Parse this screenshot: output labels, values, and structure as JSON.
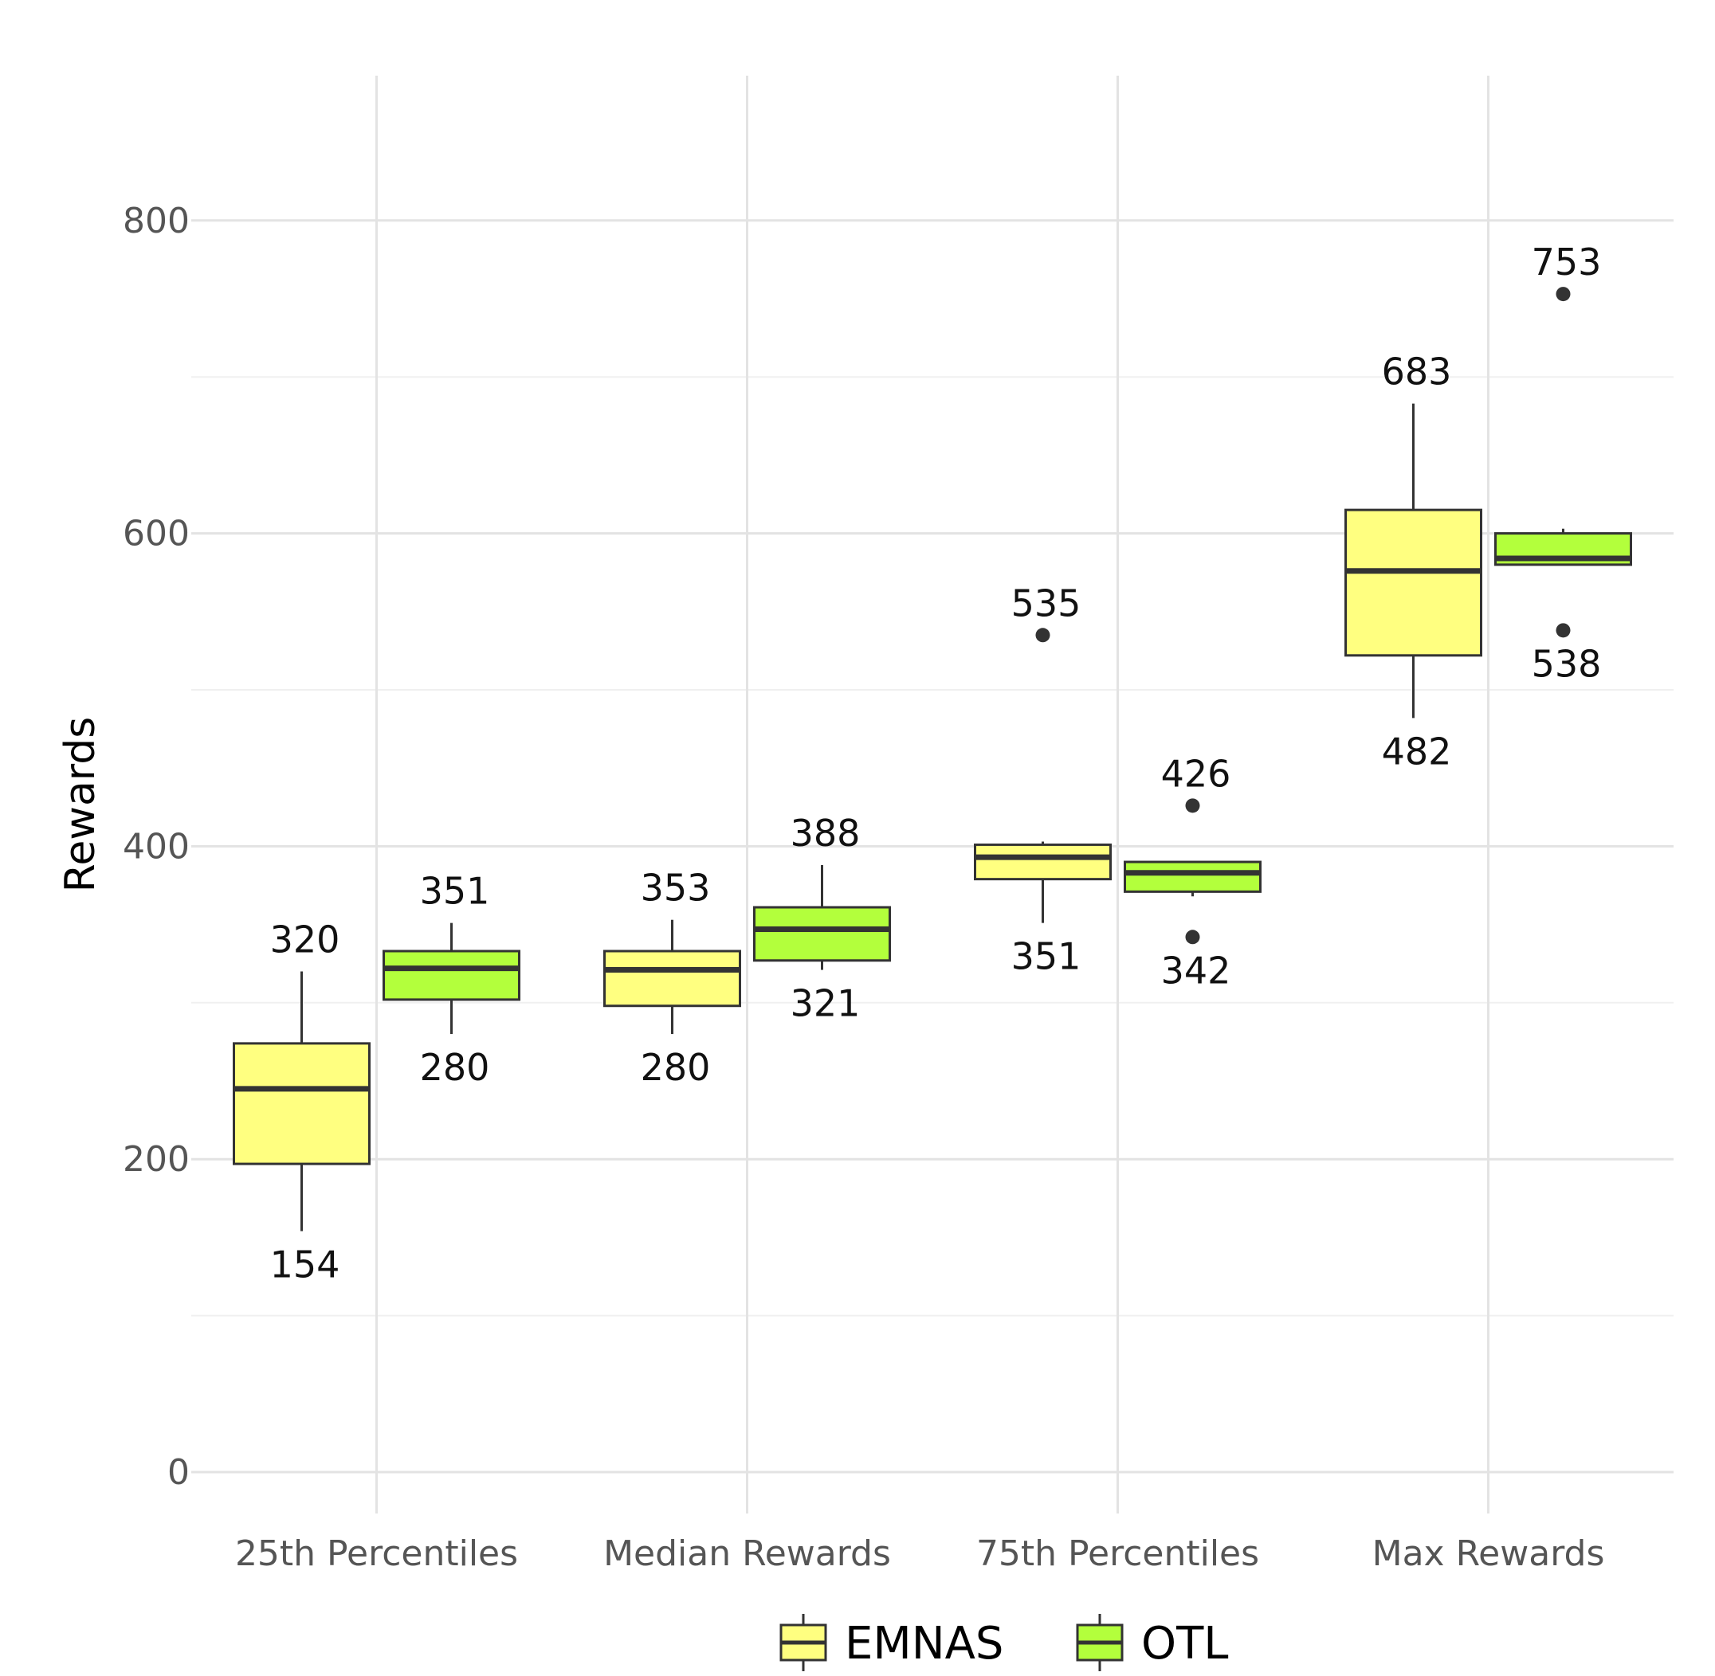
{
  "chart_data": {
    "type": "box",
    "ylabel": "Rewards",
    "ylim": [
      0,
      850
    ],
    "yticks": [
      0,
      200,
      400,
      600,
      800
    ],
    "grid": true,
    "legend_position": "bottom",
    "categories": [
      "25th Percentiles",
      "Median Rewards",
      "75th Percentiles",
      "Max Rewards"
    ],
    "series": [
      {
        "name": "EMNAS",
        "color": "#FFFF80",
        "boxes": [
          {
            "whisker_low": 154,
            "q1": 197,
            "median": 245,
            "q3": 274,
            "whisker_high": 320,
            "outliers": []
          },
          {
            "whisker_low": 280,
            "q1": 298,
            "median": 321,
            "q3": 333,
            "whisker_high": 353,
            "outliers": []
          },
          {
            "whisker_low": 351,
            "q1": 379,
            "median": 393,
            "q3": 401,
            "whisker_high": 403,
            "outliers": [
              535
            ]
          },
          {
            "whisker_low": 482,
            "q1": 522,
            "median": 576,
            "q3": 615,
            "whisker_high": 683,
            "outliers": []
          }
        ]
      },
      {
        "name": "OTL",
        "color": "#B3FF3C",
        "boxes": [
          {
            "whisker_low": 280,
            "q1": 302,
            "median": 322,
            "q3": 333,
            "whisker_high": 351,
            "outliers": []
          },
          {
            "whisker_low": 321,
            "q1": 327,
            "median": 347,
            "q3": 361,
            "whisker_high": 388,
            "outliers": []
          },
          {
            "whisker_low": 368,
            "q1": 371,
            "median": 383,
            "q3": 390,
            "whisker_high": 390,
            "outliers": [
              342,
              426
            ]
          },
          {
            "whisker_low": 580,
            "q1": 580,
            "median": 584,
            "q3": 600,
            "whisker_high": 603,
            "outliers": [
              538,
              753
            ]
          }
        ]
      }
    ],
    "annotations": [
      {
        "category": 0,
        "series": 0,
        "value": 320,
        "text": "320",
        "position": "above"
      },
      {
        "category": 0,
        "series": 0,
        "value": 154,
        "text": "154",
        "position": "below"
      },
      {
        "category": 0,
        "series": 1,
        "value": 351,
        "text": "351",
        "position": "above"
      },
      {
        "category": 0,
        "series": 1,
        "value": 280,
        "text": "280",
        "position": "below"
      },
      {
        "category": 1,
        "series": 0,
        "value": 353,
        "text": "353",
        "position": "above"
      },
      {
        "category": 1,
        "series": 0,
        "value": 280,
        "text": "280",
        "position": "below"
      },
      {
        "category": 1,
        "series": 1,
        "value": 388,
        "text": "388",
        "position": "above"
      },
      {
        "category": 1,
        "series": 1,
        "value": 321,
        "text": "321",
        "position": "below"
      },
      {
        "category": 2,
        "series": 0,
        "value": 535,
        "text": "535",
        "position": "above"
      },
      {
        "category": 2,
        "series": 0,
        "value": 351,
        "text": "351",
        "position": "below"
      },
      {
        "category": 2,
        "series": 1,
        "value": 426,
        "text": "426",
        "position": "above"
      },
      {
        "category": 2,
        "series": 1,
        "value": 342,
        "text": "342",
        "position": "below"
      },
      {
        "category": 3,
        "series": 0,
        "value": 683,
        "text": "683",
        "position": "above"
      },
      {
        "category": 3,
        "series": 0,
        "value": 482,
        "text": "482",
        "position": "below"
      },
      {
        "category": 3,
        "series": 1,
        "value": 753,
        "text": "753",
        "position": "above"
      },
      {
        "category": 3,
        "series": 1,
        "value": 538,
        "text": "538",
        "position": "below"
      }
    ]
  }
}
